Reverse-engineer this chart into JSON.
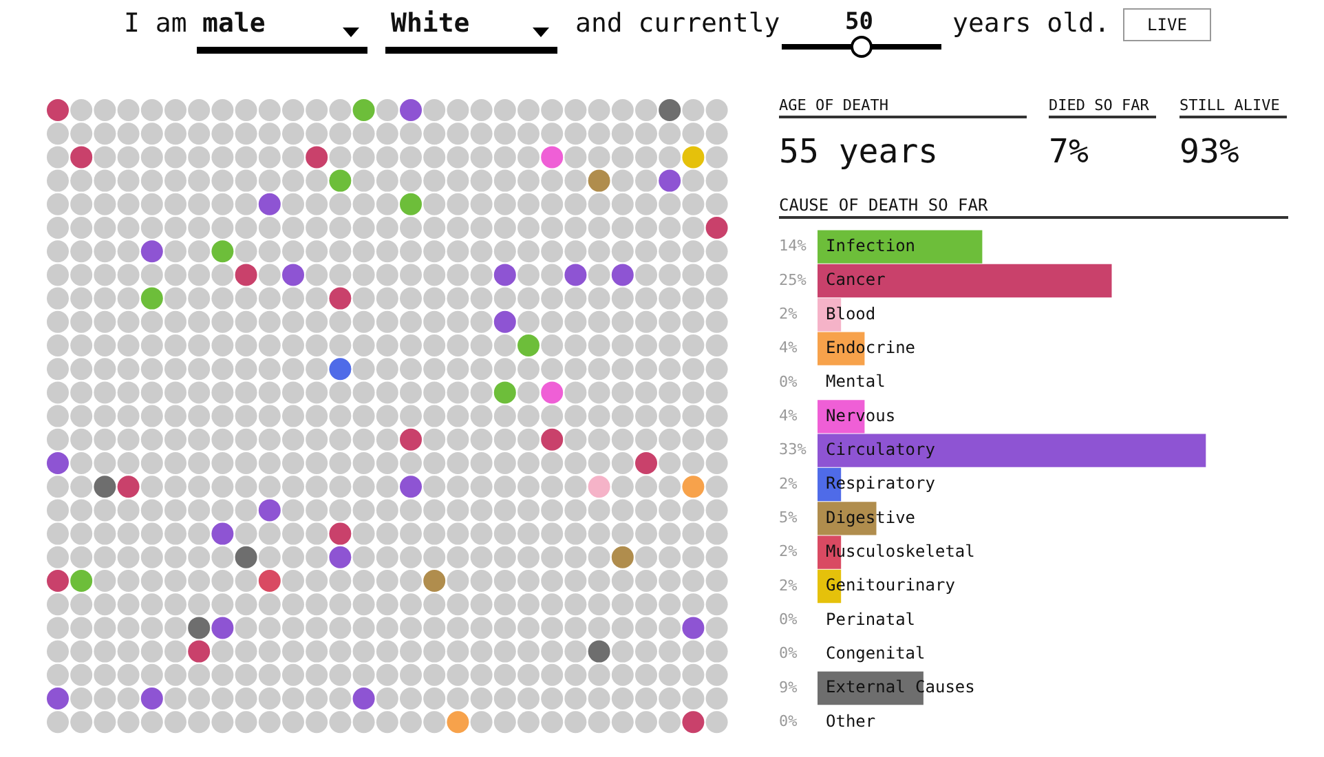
{
  "chart_data": {
    "type": "bar",
    "orientation": "horizontal",
    "title": "CAUSE OF DEATH SO FAR",
    "categories": [
      "Infection",
      "Cancer",
      "Blood",
      "Endocrine",
      "Mental",
      "Nervous",
      "Circulatory",
      "Respiratory",
      "Digestive",
      "Musculoskeletal",
      "Genitourinary",
      "Perinatal",
      "Congenital",
      "External Causes",
      "Other"
    ],
    "values": [
      14,
      25,
      2,
      4,
      0,
      4,
      33,
      2,
      5,
      2,
      2,
      0,
      0,
      9,
      0
    ],
    "value_labels": [
      "14%",
      "25%",
      "2%",
      "4%",
      "0%",
      "4%",
      "33%",
      "2%",
      "5%",
      "2%",
      "2%",
      "0%",
      "0%",
      "9%",
      "0%"
    ],
    "colors": [
      "#6dbe3a",
      "#c9416b",
      "#f5b3c8",
      "#f7a24b",
      null,
      "#ef5fd6",
      "#8e54d3",
      "#4f6be8",
      "#b08d4d",
      "#d94a62",
      "#e5c10b",
      null,
      null,
      "#6e6e6e",
      null
    ],
    "xlim": [
      0,
      40
    ],
    "annotations": [
      "I am",
      "male",
      "White",
      "and currently",
      "50",
      "years old.",
      "LIVE",
      "AGE OF DEATH",
      "55 years",
      "DIED SO FAR",
      "7%",
      "STILL ALIVE",
      "93%"
    ]
  }
}
